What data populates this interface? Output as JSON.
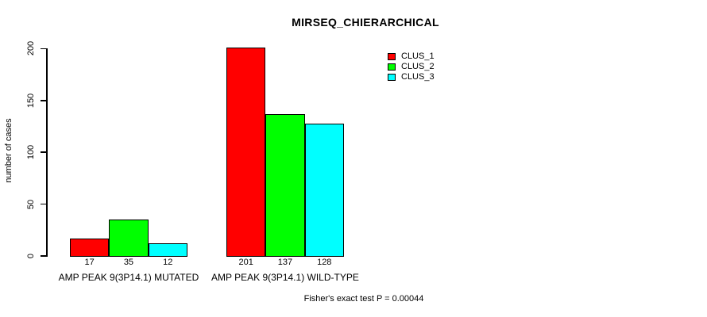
{
  "title": "MIRSEQ_CHIERARCHICAL",
  "ylabel": "number of cases",
  "footer": "Fisher's exact test P = 0.00044",
  "colors": {
    "clus1": "#FF0000",
    "clus2": "#00FF00",
    "clus3": "#00FFFF",
    "axis": "#000000",
    "background": "#FFFFFF"
  },
  "chart_data": {
    "type": "bar",
    "title": "MIRSEQ_CHIERARCHICAL",
    "xlabel": "",
    "ylabel": "number of cases",
    "categories": [
      "AMP PEAK 9(3P14.1) MUTATED",
      "AMP PEAK 9(3P14.1) WILD-TYPE"
    ],
    "series": [
      {
        "name": "CLUS_1",
        "color": "#FF0000",
        "values": [
          17,
          201
        ]
      },
      {
        "name": "CLUS_2",
        "color": "#00FF00",
        "values": [
          35,
          137
        ]
      },
      {
        "name": "CLUS_3",
        "color": "#00FFFF",
        "values": [
          12,
          128
        ]
      }
    ],
    "bar_value_labels": [
      [
        "17",
        "35",
        "12"
      ],
      [
        "201",
        "137",
        "128"
      ]
    ],
    "yticks": [
      0,
      50,
      100,
      150,
      200
    ],
    "ylim": [
      0,
      201
    ],
    "grid": false,
    "legend_position": "top-right",
    "legend_entries": [
      "CLUS_1",
      "CLUS_2",
      "CLUS_3"
    ],
    "annotation": "Fisher's exact test P = 0.00044"
  }
}
